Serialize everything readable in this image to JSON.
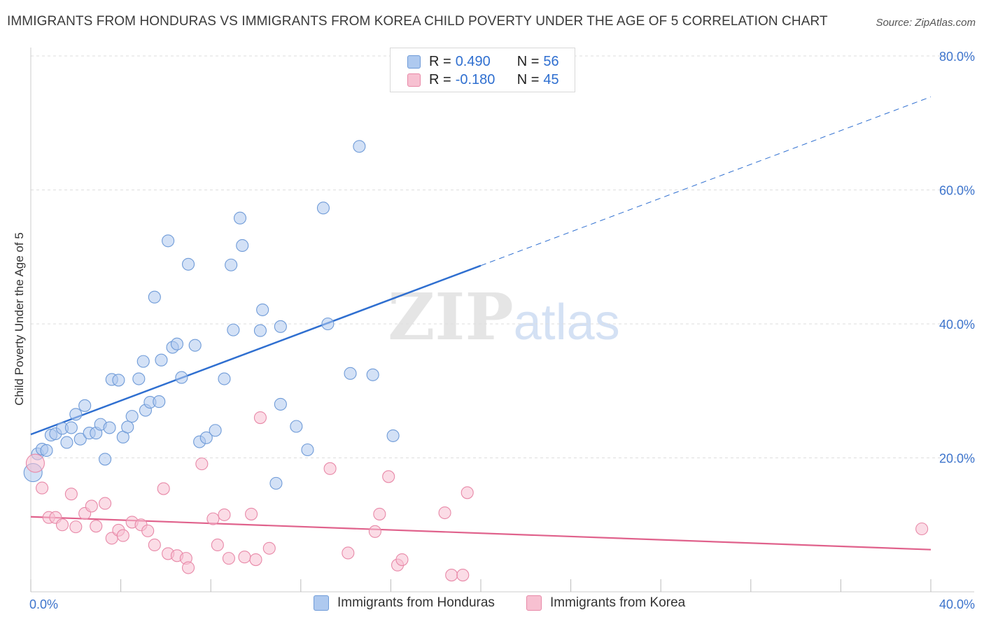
{
  "title": "IMMIGRANTS FROM HONDURAS VS IMMIGRANTS FROM KOREA CHILD POVERTY UNDER THE AGE OF 5 CORRELATION CHART",
  "source": "Source: ZipAtlas.com",
  "watermark": {
    "zip": "ZIP",
    "atlas": "atlas"
  },
  "colors": {
    "blue": "#6f9bd8",
    "blue_fill": "#aec9ef",
    "blue_line": "#2f6fd0",
    "pink": "#e889a8",
    "pink_fill": "#f7c0d1",
    "pink_line": "#e0628c",
    "grid": "#dedede",
    "tick_text": "#3d74cc"
  },
  "legend_top": {
    "rows": [
      {
        "r_label": "R =",
        "r_value": "0.490",
        "n_label": "N =",
        "n_value": "56"
      },
      {
        "r_label": "R =",
        "r_value": "-0.180",
        "n_label": "N =",
        "n_value": "45"
      }
    ]
  },
  "legend_bottom": [
    "Immigrants from Honduras",
    "Immigrants from Korea"
  ],
  "chart_data": {
    "type": "scatter",
    "title": "IMMIGRANTS FROM HONDURAS VS IMMIGRANTS FROM KOREA CHILD POVERTY UNDER THE AGE OF 5 CORRELATION CHART",
    "xlabel": "",
    "ylabel": "Child Poverty Under the Age of 5",
    "xlim": [
      0,
      40
    ],
    "ylim": [
      0,
      80
    ],
    "x_tick_labels": [
      "0.0%",
      "40.0%"
    ],
    "y_ticks": [
      20,
      40,
      60,
      80
    ],
    "y_tick_labels": [
      "20.0%",
      "40.0%",
      "60.0%",
      "80.0%"
    ],
    "grid": true,
    "series": [
      {
        "name": "Immigrants from Honduras",
        "r": 0.49,
        "n": 56,
        "trend": {
          "x0": 0,
          "y0": 23.5,
          "x1": 20,
          "y1": 48.7,
          "dash_x1": 40,
          "dash_y1": 73.9
        },
        "points": [
          [
            0.1,
            17.8
          ],
          [
            0.3,
            20.6
          ],
          [
            0.5,
            21.3
          ],
          [
            0.7,
            21.1
          ],
          [
            0.9,
            23.4
          ],
          [
            1.1,
            23.6
          ],
          [
            1.4,
            24.4
          ],
          [
            1.6,
            22.3
          ],
          [
            1.8,
            24.5
          ],
          [
            2.0,
            26.5
          ],
          [
            2.2,
            22.8
          ],
          [
            2.4,
            27.8
          ],
          [
            2.6,
            23.7
          ],
          [
            2.9,
            23.7
          ],
          [
            3.1,
            25.0
          ],
          [
            3.3,
            19.8
          ],
          [
            3.5,
            24.5
          ],
          [
            3.6,
            31.7
          ],
          [
            3.9,
            31.6
          ],
          [
            4.1,
            23.1
          ],
          [
            4.3,
            24.6
          ],
          [
            4.5,
            26.2
          ],
          [
            4.8,
            31.8
          ],
          [
            5.0,
            34.4
          ],
          [
            5.1,
            27.1
          ],
          [
            5.3,
            28.3
          ],
          [
            5.5,
            44.0
          ],
          [
            5.7,
            28.4
          ],
          [
            5.8,
            34.6
          ],
          [
            6.1,
            52.4
          ],
          [
            6.3,
            36.5
          ],
          [
            6.5,
            37.0
          ],
          [
            6.7,
            32.0
          ],
          [
            7.0,
            48.9
          ],
          [
            7.3,
            36.8
          ],
          [
            7.5,
            22.4
          ],
          [
            7.8,
            23.0
          ],
          [
            8.2,
            24.1
          ],
          [
            8.6,
            31.8
          ],
          [
            8.9,
            48.8
          ],
          [
            9.0,
            39.1
          ],
          [
            9.3,
            55.8
          ],
          [
            9.4,
            51.7
          ],
          [
            10.2,
            39.0
          ],
          [
            10.3,
            42.1
          ],
          [
            10.9,
            16.2
          ],
          [
            11.1,
            28.0
          ],
          [
            11.1,
            39.6
          ],
          [
            11.8,
            24.7
          ],
          [
            12.3,
            21.2
          ],
          [
            13.0,
            57.3
          ],
          [
            13.2,
            40.0
          ],
          [
            14.2,
            32.6
          ],
          [
            14.6,
            66.5
          ],
          [
            15.2,
            32.4
          ],
          [
            16.1,
            23.3
          ]
        ]
      },
      {
        "name": "Immigrants from Korea",
        "r": -0.18,
        "n": 45,
        "trend": {
          "x0": 0,
          "y0": 11.2,
          "x1": 40,
          "y1": 6.3
        },
        "points": [
          [
            0.2,
            19.2
          ],
          [
            0.5,
            15.5
          ],
          [
            0.8,
            11.1
          ],
          [
            1.1,
            11.1
          ],
          [
            1.4,
            10.0
          ],
          [
            1.8,
            14.6
          ],
          [
            2.0,
            9.7
          ],
          [
            2.4,
            11.7
          ],
          [
            2.7,
            12.8
          ],
          [
            2.9,
            9.8
          ],
          [
            3.3,
            13.2
          ],
          [
            3.6,
            8.0
          ],
          [
            3.9,
            9.2
          ],
          [
            4.1,
            8.4
          ],
          [
            4.5,
            10.4
          ],
          [
            4.9,
            10.0
          ],
          [
            5.2,
            9.1
          ],
          [
            5.5,
            7.0
          ],
          [
            5.9,
            15.4
          ],
          [
            6.1,
            5.7
          ],
          [
            6.5,
            5.4
          ],
          [
            6.9,
            5.0
          ],
          [
            7.0,
            3.6
          ],
          [
            7.6,
            19.1
          ],
          [
            8.1,
            10.9
          ],
          [
            8.3,
            7.0
          ],
          [
            8.6,
            11.5
          ],
          [
            8.8,
            5.0
          ],
          [
            9.5,
            5.2
          ],
          [
            9.8,
            11.6
          ],
          [
            10.0,
            4.8
          ],
          [
            10.2,
            26.0
          ],
          [
            10.6,
            6.5
          ],
          [
            13.3,
            18.4
          ],
          [
            14.1,
            5.8
          ],
          [
            15.3,
            9.0
          ],
          [
            15.5,
            11.6
          ],
          [
            15.9,
            17.2
          ],
          [
            16.3,
            4.0
          ],
          [
            16.5,
            4.8
          ],
          [
            18.4,
            11.8
          ],
          [
            18.7,
            2.5
          ],
          [
            19.2,
            2.5
          ],
          [
            19.4,
            14.8
          ],
          [
            39.6,
            9.4
          ]
        ]
      }
    ]
  }
}
